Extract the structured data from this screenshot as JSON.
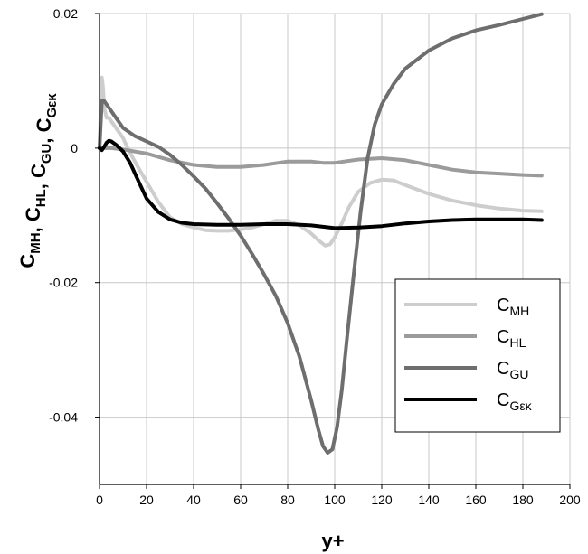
{
  "chart_data": {
    "type": "line",
    "xlabel": "y+",
    "ylabel": {
      "parts": [
        {
          "base": "C",
          "sub": "MH"
        },
        {
          "base": ", C",
          "sub": "HL"
        },
        {
          "base": ", C",
          "sub": "GU"
        },
        {
          "base": ", C",
          "sub": "Gεκ"
        }
      ]
    },
    "xlim": [
      0,
      200
    ],
    "ylim": [
      -0.05,
      0.02
    ],
    "xticks": [
      0,
      20,
      40,
      60,
      80,
      100,
      120,
      140,
      160,
      180,
      200
    ],
    "xtick_labels": [
      "0",
      "20",
      "40",
      "60",
      "80",
      "100",
      "120",
      "140",
      "160",
      "180",
      "200"
    ],
    "yticks": [
      0.02,
      0,
      -0.02,
      -0.04
    ],
    "ytick_labels": [
      "0.02",
      "0",
      "-0.02",
      "-0.04"
    ],
    "grid": true,
    "legend_position": "lower-right",
    "series": [
      {
        "name": "C_MH",
        "label_base": "C",
        "label_sub": "MH",
        "color": "#cdcdcd",
        "x": [
          0,
          0.5,
          1,
          1.5,
          2,
          3,
          4,
          5,
          6,
          8,
          10,
          12,
          15,
          20,
          25,
          30,
          35,
          40,
          45,
          50,
          55,
          60,
          65,
          70,
          75,
          80,
          85,
          90,
          93,
          96,
          98,
          100,
          103,
          106,
          110,
          115,
          120,
          125,
          130,
          140,
          150,
          160,
          170,
          180,
          188
        ],
        "y": [
          0,
          0.006,
          0.0105,
          0.009,
          0.006,
          0.0045,
          0.0045,
          0.004,
          0.0035,
          0.0025,
          0.0015,
          0.0,
          -0.002,
          -0.005,
          -0.008,
          -0.0103,
          -0.0113,
          -0.0118,
          -0.0122,
          -0.0123,
          -0.0123,
          -0.0121,
          -0.0118,
          -0.0113,
          -0.0108,
          -0.0108,
          -0.0115,
          -0.0127,
          -0.0137,
          -0.0145,
          -0.0143,
          -0.0133,
          -0.0112,
          -0.0088,
          -0.0065,
          -0.0052,
          -0.0047,
          -0.0048,
          -0.0055,
          -0.0068,
          -0.0078,
          -0.0085,
          -0.009,
          -0.0093,
          -0.0094
        ]
      },
      {
        "name": "C_HL",
        "label_base": "C",
        "label_sub": "HL",
        "color": "#9b9b9b",
        "x": [
          0,
          5,
          10,
          15,
          20,
          30,
          40,
          50,
          60,
          70,
          80,
          90,
          95,
          100,
          110,
          120,
          130,
          140,
          150,
          160,
          170,
          180,
          188
        ],
        "y": [
          0,
          0.0,
          -0.0002,
          -0.0005,
          -0.0008,
          -0.0018,
          -0.0025,
          -0.0028,
          -0.0028,
          -0.0025,
          -0.002,
          -0.002,
          -0.0022,
          -0.0022,
          -0.0017,
          -0.0015,
          -0.0018,
          -0.0025,
          -0.0032,
          -0.0036,
          -0.0038,
          -0.004,
          -0.0041
        ]
      },
      {
        "name": "C_GU",
        "label_base": "C",
        "label_sub": "GU",
        "color": "#6e6e6e",
        "x": [
          0,
          1,
          2,
          3,
          5,
          7,
          10,
          15,
          20,
          25,
          30,
          35,
          40,
          45,
          50,
          55,
          60,
          65,
          70,
          75,
          80,
          85,
          90,
          93,
          95,
          97,
          99,
          101,
          103,
          105,
          108,
          111,
          114,
          117,
          120,
          125,
          130,
          140,
          150,
          160,
          170,
          180,
          188
        ],
        "y": [
          0,
          0.007,
          0.007,
          0.0065,
          0.0055,
          0.0045,
          0.003,
          0.0018,
          0.001,
          0.0002,
          -0.001,
          -0.0025,
          -0.0042,
          -0.006,
          -0.0082,
          -0.0105,
          -0.013,
          -0.0158,
          -0.0188,
          -0.022,
          -0.026,
          -0.031,
          -0.0375,
          -0.0418,
          -0.0443,
          -0.0453,
          -0.0448,
          -0.0415,
          -0.036,
          -0.029,
          -0.019,
          -0.0095,
          -0.0015,
          0.0035,
          0.0065,
          0.0095,
          0.0118,
          0.0145,
          0.0163,
          0.0175,
          0.0183,
          0.0192,
          0.0199
        ]
      },
      {
        "name": "C_Gεκ",
        "label_base": "C",
        "label_sub": "Gεκ",
        "color": "#000000",
        "x": [
          0,
          1,
          2,
          3,
          4,
          5,
          7,
          10,
          13,
          16,
          20,
          25,
          30,
          35,
          40,
          50,
          60,
          70,
          80,
          90,
          100,
          110,
          120,
          130,
          140,
          150,
          160,
          170,
          180,
          188
        ],
        "y": [
          0,
          -0.0003,
          0.0002,
          0.0008,
          0.0011,
          0.001,
          0.0005,
          -0.0005,
          -0.0022,
          -0.0045,
          -0.0075,
          -0.0095,
          -0.0106,
          -0.0111,
          -0.0113,
          -0.0114,
          -0.0114,
          -0.0113,
          -0.0113,
          -0.0115,
          -0.0119,
          -0.0118,
          -0.0116,
          -0.0112,
          -0.0109,
          -0.0107,
          -0.0106,
          -0.0106,
          -0.0106,
          -0.0107
        ]
      }
    ]
  }
}
